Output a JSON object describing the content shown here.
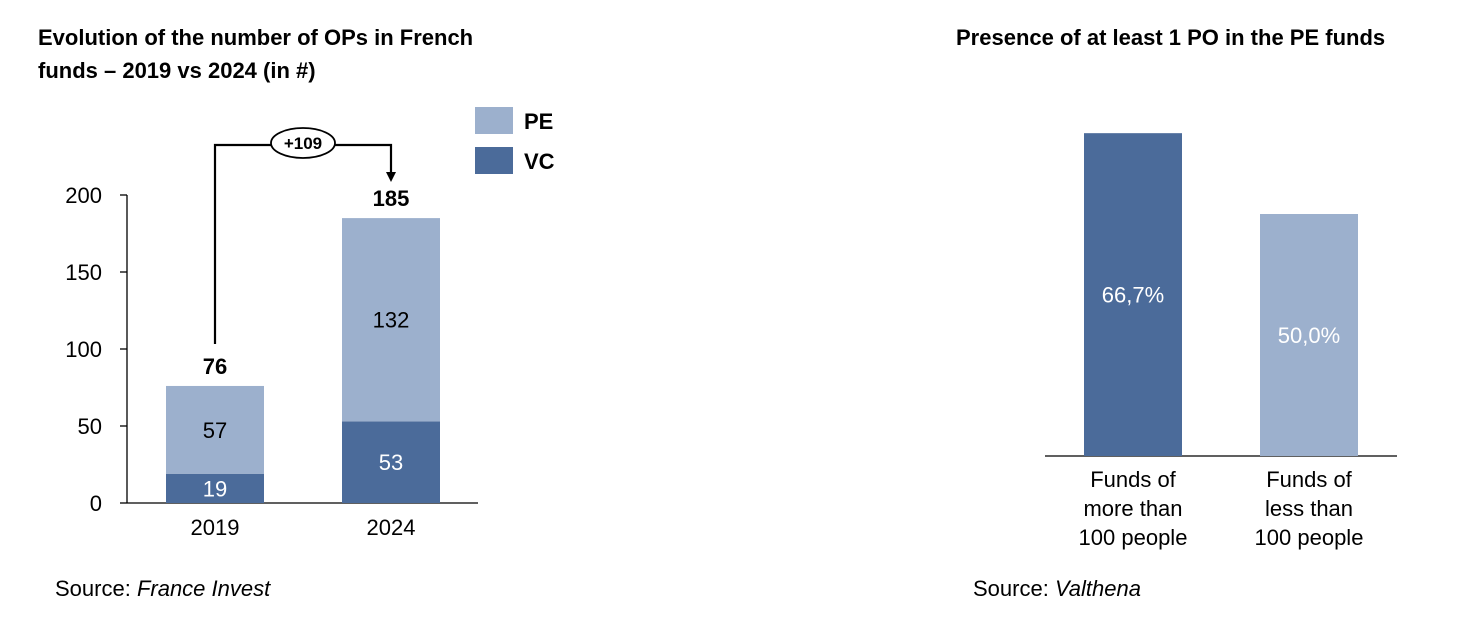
{
  "left_title_line1": "Evolution of the number of OPs in French",
  "left_title_line2": "funds – 2019 vs 2024 (in #)",
  "left_source_label": "Source: ",
  "left_source_name": "France Invest",
  "right_title": "Presence of at least 1 PO in the PE funds",
  "right_source_label": "Source: ",
  "right_source_name": "Valthena",
  "colors": {
    "pe": "#9cb0cd",
    "vc": "#4b6b9a",
    "axis": "#000000"
  },
  "chart_data": [
    {
      "type": "bar",
      "stacked": true,
      "title": "Evolution of the number of OPs in French funds – 2019 vs 2024 (in #)",
      "categories": [
        "2019",
        "2024"
      ],
      "series": [
        {
          "name": "VC",
          "values": [
            19,
            53
          ]
        },
        {
          "name": "PE",
          "values": [
            57,
            132
          ]
        }
      ],
      "totals": [
        76,
        185
      ],
      "ylim": [
        0,
        200
      ],
      "yticks": [
        "0",
        "50",
        "100",
        "150",
        "200"
      ],
      "legend": "top-right",
      "annotation": "+109"
    },
    {
      "type": "bar",
      "title": "Presence of at least 1 PO in the PE funds",
      "categories": [
        [
          "Funds of",
          "more than",
          "100 people"
        ],
        [
          "Funds of",
          "less than",
          "100 people"
        ]
      ],
      "values": [
        66.7,
        50.0
      ],
      "labels": [
        "66,7%",
        "50,0%"
      ]
    }
  ]
}
